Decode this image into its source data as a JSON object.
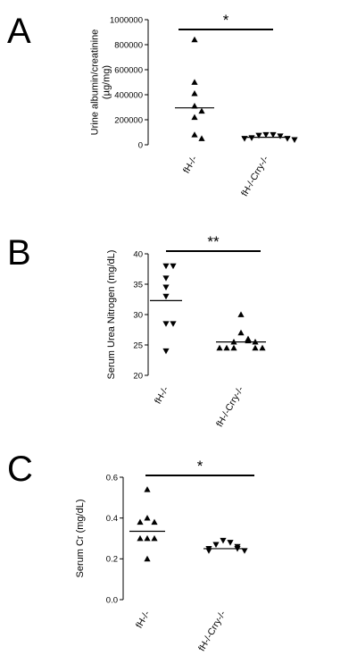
{
  "chart_data": [
    {
      "type": "scatter",
      "panel": "A",
      "ylabel": "Urine albumin/creatinine\n(µg/mg)",
      "ylim": [
        0,
        1000000
      ],
      "y_ticks": [
        0,
        200000,
        400000,
        600000,
        800000,
        1000000
      ],
      "y_tick_labels": [
        "0",
        "200000",
        "400000",
        "600000",
        "800000",
        "1000000"
      ],
      "categories": [
        "fH-/-",
        "fH-/-Crry-/-"
      ],
      "series": [
        {
          "category": "fH-/-",
          "marker": "triangle-up",
          "values": [
            840000,
            500000,
            410000,
            310000,
            270000,
            220000,
            80000,
            50000
          ],
          "mean": 295000
        },
        {
          "category": "fH-/-Crry-/-",
          "marker": "triangle-down",
          "values": [
            80000,
            80000,
            75000,
            70000,
            55000,
            50000,
            50000,
            40000
          ],
          "mean": 60000
        }
      ],
      "significance": "*"
    },
    {
      "type": "scatter",
      "panel": "B",
      "ylabel": "Serum Urea Nitrogen (mg/dL)",
      "ylim": [
        20,
        40
      ],
      "y_ticks": [
        20,
        25,
        30,
        35,
        40
      ],
      "y_tick_labels": [
        "20",
        "25",
        "30",
        "35",
        "40"
      ],
      "categories": [
        "fH-/-",
        "fH-/-Crry-/-"
      ],
      "series": [
        {
          "category": "fH-/-",
          "marker": "triangle-down",
          "values": [
            38,
            38,
            36,
            34.5,
            33,
            28.5,
            28.5,
            24
          ],
          "mean": 32.3
        },
        {
          "category": "fH-/-Crry-/-",
          "marker": "triangle-up",
          "values": [
            30,
            27,
            26,
            25.7,
            25.5,
            25.5,
            24.5,
            24.5,
            24.5,
            24.5,
            24.5
          ],
          "mean": 25.5
        }
      ],
      "significance": "**"
    },
    {
      "type": "scatter",
      "panel": "C",
      "ylabel": "Serum Cr (mg/dL)",
      "ylim": [
        0.0,
        0.6
      ],
      "y_ticks": [
        0.0,
        0.2,
        0.4,
        0.6
      ],
      "y_tick_labels": [
        "0.0",
        "0.2",
        "0.4",
        "0.6"
      ],
      "categories": [
        "fH-/-",
        "fH-/-Crry-/-"
      ],
      "series": [
        {
          "category": "fH-/-",
          "marker": "triangle-up",
          "values": [
            0.54,
            0.4,
            0.38,
            0.38,
            0.3,
            0.3,
            0.3,
            0.2
          ],
          "mean": 0.335
        },
        {
          "category": "fH-/-Crry-/-",
          "marker": "triangle-down",
          "values": [
            0.29,
            0.28,
            0.27,
            0.26,
            0.25,
            0.25,
            0.24,
            0.24
          ],
          "mean": 0.25
        }
      ],
      "significance": "*"
    }
  ]
}
